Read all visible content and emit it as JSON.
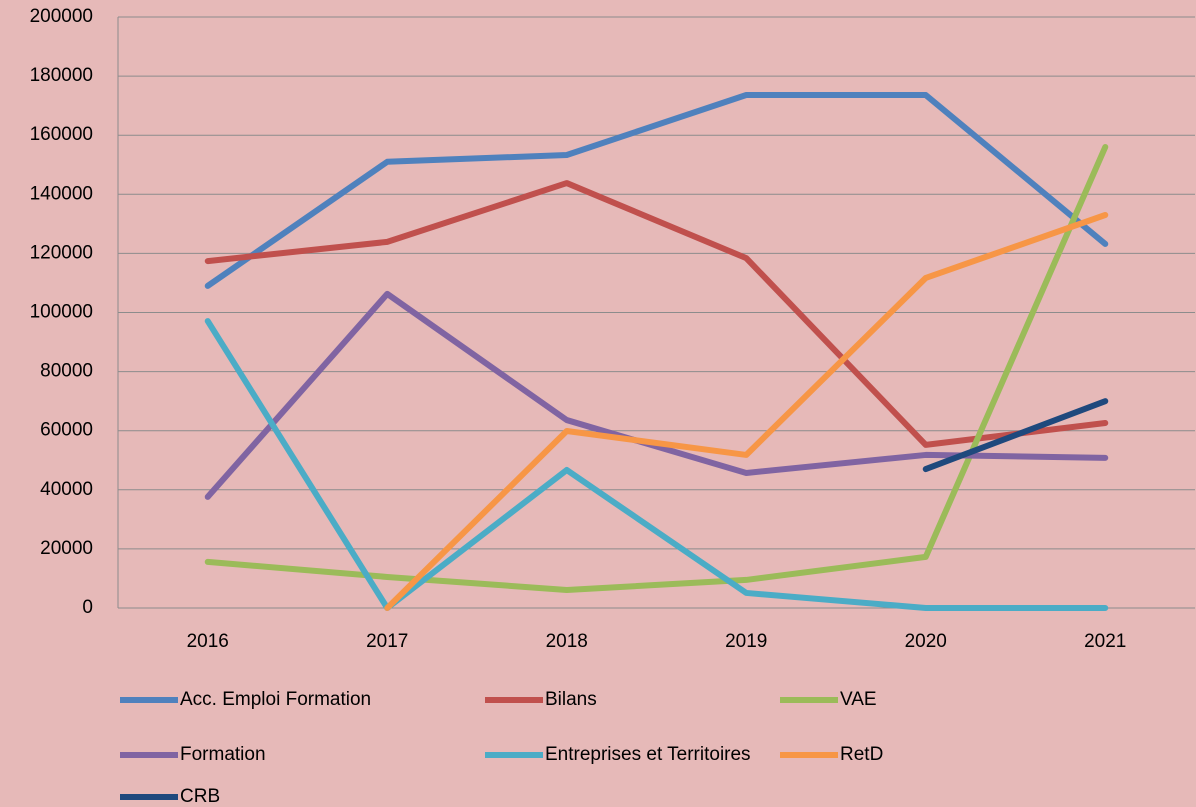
{
  "chart_data": {
    "type": "line",
    "categories": [
      "2016",
      "2017",
      "2018",
      "2019",
      "2020",
      "2021"
    ],
    "series": [
      {
        "name": "Acc. Emploi Formation",
        "color": "#4f81bd",
        "values": [
          109000,
          151000,
          153300,
          173600,
          173600,
          123200
        ]
      },
      {
        "name": "Bilans",
        "color": "#c0504d",
        "values": [
          117400,
          123900,
          143800,
          118400,
          55200,
          62600
        ]
      },
      {
        "name": "VAE",
        "color": "#9bbb59",
        "values": [
          15600,
          10500,
          6100,
          9500,
          17300,
          156000
        ]
      },
      {
        "name": "Formation",
        "color": "#8064a2",
        "values": [
          37600,
          106300,
          63600,
          45700,
          51800,
          50800
        ]
      },
      {
        "name": "Entreprises et Territoires",
        "color": "#4bacc6",
        "values": [
          97100,
          0,
          46700,
          5100,
          0,
          0
        ]
      },
      {
        "name": "RetD",
        "color": "#f79646",
        "values": [
          null,
          0,
          59900,
          51800,
          111700,
          133000
        ]
      },
      {
        "name": "CRB",
        "color": "#1f497d",
        "values": [
          null,
          null,
          null,
          null,
          47000,
          70000
        ]
      }
    ],
    "ylim": [
      0,
      200000
    ],
    "yticks": [
      0,
      20000,
      40000,
      60000,
      80000,
      100000,
      120000,
      140000,
      160000,
      180000,
      200000
    ],
    "grid": true,
    "legend": "bottom"
  }
}
